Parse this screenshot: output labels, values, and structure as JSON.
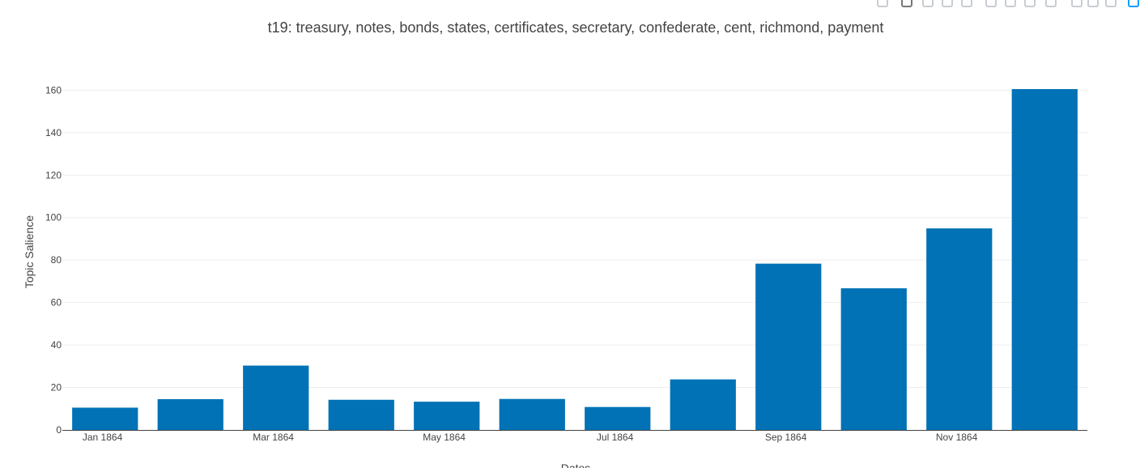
{
  "modebar": {
    "buttons": [
      "camera-icon",
      "zoom-icon",
      "pan-icon",
      "box-select-icon",
      "lasso-icon",
      "zoom-in-icon",
      "zoom-out-icon",
      "autoscale-icon",
      "reset-axes-icon",
      "spike-lines-icon",
      "hover-closest-icon",
      "hover-compare-icon",
      "plotly-logo"
    ]
  },
  "chart_data": {
    "type": "bar",
    "title": "t19: treasury, notes, bonds, states, certificates, secretary, confederate, cent, richmond, payment",
    "xlabel": "Dates",
    "ylabel": "Topic Salience",
    "categories": [
      "1864-01",
      "1864-02",
      "1864-03",
      "1864-04",
      "1864-05",
      "1864-06",
      "1864-07",
      "1864-08",
      "1864-09",
      "1864-10",
      "1864-11",
      "1864-12"
    ],
    "values": [
      10.5,
      14.5,
      30.3,
      14.2,
      13.3,
      14.6,
      10.8,
      23.8,
      78.3,
      66.7,
      94.9,
      160.5
    ],
    "x_tick_labels": [
      "Jan 1864",
      "Mar 1864",
      "May 1864",
      "Jul 1864",
      "Sep 1864",
      "Nov 1864"
    ],
    "x_tick_categories": [
      "1864-01",
      "1864-03",
      "1864-05",
      "1864-07",
      "1864-09",
      "1864-11"
    ],
    "y_ticks": [
      "0",
      "20",
      "40",
      "60",
      "80",
      "100",
      "120",
      "140",
      "160"
    ],
    "ylim": [
      0,
      168.9
    ],
    "grid": true,
    "bar_color": "#0072b5",
    "grid_color": "#eeeeee",
    "text_color": "#444444"
  }
}
